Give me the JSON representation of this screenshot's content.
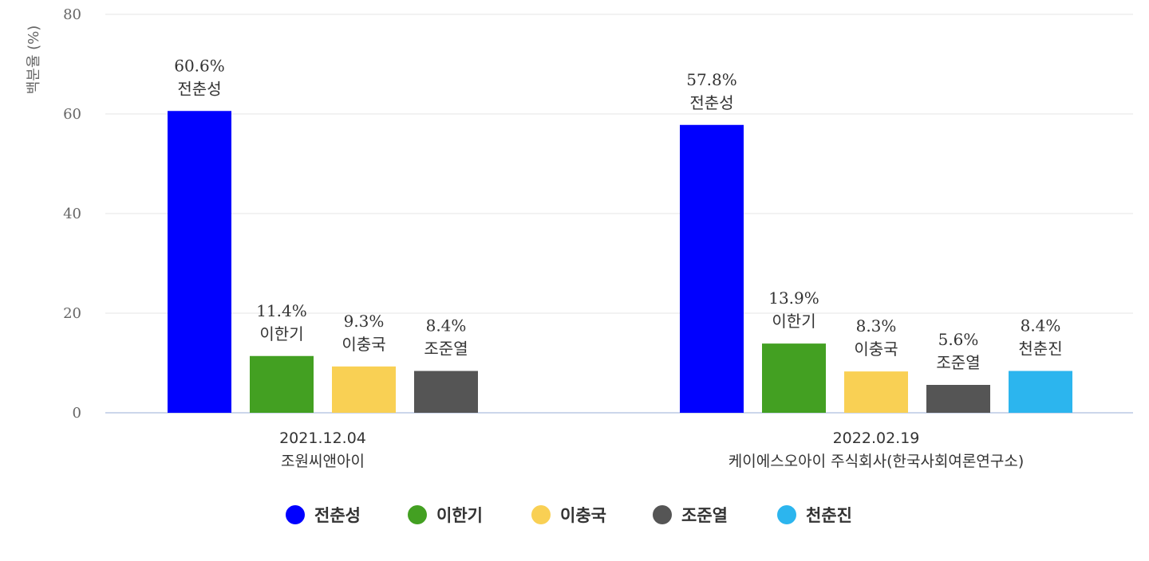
{
  "chart_data": {
    "type": "bar",
    "title": "",
    "ylabel": "백분율 (%)",
    "ylim": [
      0,
      80
    ],
    "yticks": [
      0,
      20,
      40,
      60,
      80
    ],
    "grid": true,
    "legend_position": "bottom",
    "groups": [
      {
        "label_lines": [
          "2021.12.04",
          "조원씨앤아이"
        ],
        "bars": [
          {
            "series": "전춘성",
            "value": 60.6,
            "value_label": "60.6%"
          },
          {
            "series": "이한기",
            "value": 11.4,
            "value_label": "11.4%"
          },
          {
            "series": "이충국",
            "value": 9.3,
            "value_label": "9.3%"
          },
          {
            "series": "조준열",
            "value": 8.4,
            "value_label": "8.4%"
          }
        ]
      },
      {
        "label_lines": [
          "2022.02.19",
          "케이에스오아이 주식회사(한국사회여론연구소)"
        ],
        "bars": [
          {
            "series": "전춘성",
            "value": 57.8,
            "value_label": "57.8%"
          },
          {
            "series": "이한기",
            "value": 13.9,
            "value_label": "13.9%"
          },
          {
            "series": "이충국",
            "value": 8.3,
            "value_label": "8.3%"
          },
          {
            "series": "조준열",
            "value": 5.6,
            "value_label": "5.6%"
          },
          {
            "series": "천춘진",
            "value": 8.4,
            "value_label": "8.4%"
          }
        ]
      }
    ],
    "series": [
      {
        "name": "전춘성",
        "color": "#0000ff"
      },
      {
        "name": "이한기",
        "color": "#43a022"
      },
      {
        "name": "이충국",
        "color": "#f9d054"
      },
      {
        "name": "조준열",
        "color": "#555555"
      },
      {
        "name": "천춘진",
        "color": "#2cb5ee"
      }
    ]
  }
}
